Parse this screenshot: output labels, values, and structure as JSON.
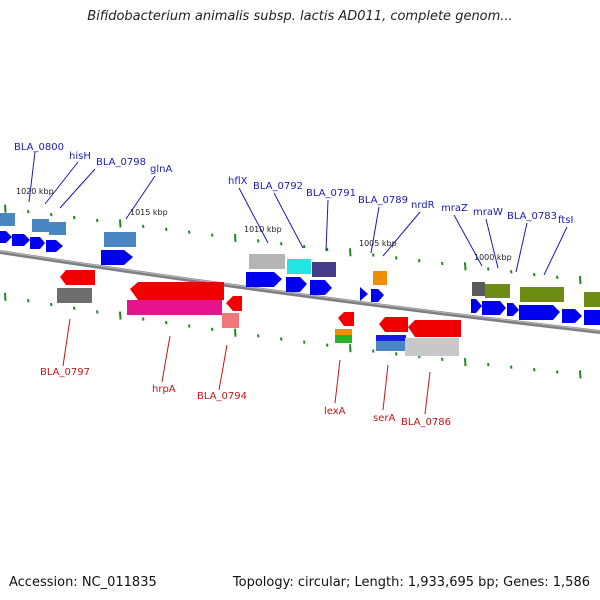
{
  "header": {
    "title": "Bifidobacterium animalis subsp. lactis AD011, complete genom..."
  },
  "footer": {
    "accession": "Accession: NC_011835",
    "topology": "Topology: circular; Length: 1,933,695 bp; Genes: 1,586"
  },
  "colors": {
    "plus_label": "#1a1ab4",
    "minus_label": "#c81414",
    "backbone": "#7f7f7f",
    "tick": "#1d8a1d"
  },
  "scale_marks": [
    "1020 kbp",
    "1015 kbp",
    "1010 kbp",
    "1005 kbp",
    "1000 kbp"
  ],
  "plus_genes": [
    "BLA_0800",
    "hisH",
    "BLA_0798",
    "glnA",
    "hflX",
    "BLA_0792",
    "BLA_0791",
    "BLA_0789",
    "nrdR",
    "mraZ",
    "mraW",
    "BLA_0783",
    "ftsI"
  ],
  "minus_genes": [
    "BLA_0797",
    "hrpA",
    "BLA_0794",
    "lexA",
    "serA",
    "BLA_0786"
  ]
}
